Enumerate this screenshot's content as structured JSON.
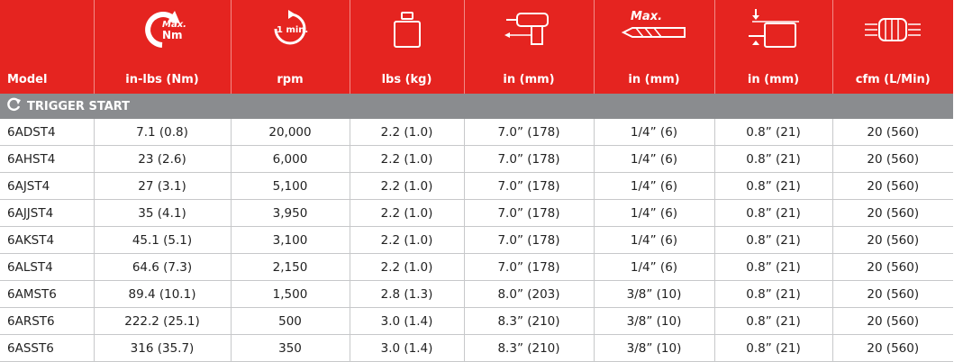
{
  "header": {
    "columns": [
      {
        "label": "Model",
        "icon": ""
      },
      {
        "label": "in-lbs (Nm)",
        "icon": "max-torque-icon",
        "icon_text_top": "Max.",
        "icon_text_bottom": "Nm"
      },
      {
        "label": "rpm",
        "icon": "speed-per-minute-icon",
        "icon_text": "1 min."
      },
      {
        "label": "lbs (kg)",
        "icon": "weight-icon"
      },
      {
        "label": "in (mm)",
        "icon": "tool-length-icon"
      },
      {
        "label": "in (mm)",
        "icon": "max-drill-bit-icon",
        "icon_text": "Max."
      },
      {
        "label": "in (mm)",
        "icon": "chuck-offset-icon"
      },
      {
        "label": "cfm (L/Min)",
        "icon": "air-flow-icon"
      }
    ]
  },
  "section": {
    "title": "TRIGGER START",
    "icon": "refresh-arrow-icon"
  },
  "rows": [
    [
      "6ADST4",
      "7.1 (0.8)",
      "20,000",
      "2.2 (1.0)",
      "7.0” (178)",
      "1/4” (6)",
      "0.8” (21)",
      "20 (560)"
    ],
    [
      "6AHST4",
      "23 (2.6)",
      "6,000",
      "2.2 (1.0)",
      "7.0” (178)",
      "1/4” (6)",
      "0.8” (21)",
      "20 (560)"
    ],
    [
      "6AJST4",
      "27 (3.1)",
      "5,100",
      "2.2 (1.0)",
      "7.0” (178)",
      "1/4” (6)",
      "0.8” (21)",
      "20 (560)"
    ],
    [
      "6AJJST4",
      "35 (4.1)",
      "3,950",
      "2.2 (1.0)",
      "7.0” (178)",
      "1/4” (6)",
      "0.8” (21)",
      "20 (560)"
    ],
    [
      "6AKST4",
      "45.1 (5.1)",
      "3,100",
      "2.2 (1.0)",
      "7.0” (178)",
      "1/4” (6)",
      "0.8” (21)",
      "20 (560)"
    ],
    [
      "6ALST4",
      "64.6 (7.3)",
      "2,150",
      "2.2 (1.0)",
      "7.0” (178)",
      "1/4” (6)",
      "0.8” (21)",
      "20 (560)"
    ],
    [
      "6AMST6",
      "89.4 (10.1)",
      "1,500",
      "2.8 (1.3)",
      "8.0” (203)",
      "3/8” (10)",
      "0.8” (21)",
      "20 (560)"
    ],
    [
      "6ARST6",
      "222.2 (25.1)",
      "500",
      "3.0 (1.4)",
      "8.3” (210)",
      "3/8” (10)",
      "0.8” (21)",
      "20 (560)"
    ],
    [
      "6ASST6",
      "316 (35.7)",
      "350",
      "3.0 (1.4)",
      "8.3” (210)",
      "3/8” (10)",
      "0.8” (21)",
      "20 (560)"
    ]
  ],
  "colors": {
    "header_red": "#e52420",
    "section_gray": "#8a8c8f",
    "grid": "#c7c8ca"
  }
}
